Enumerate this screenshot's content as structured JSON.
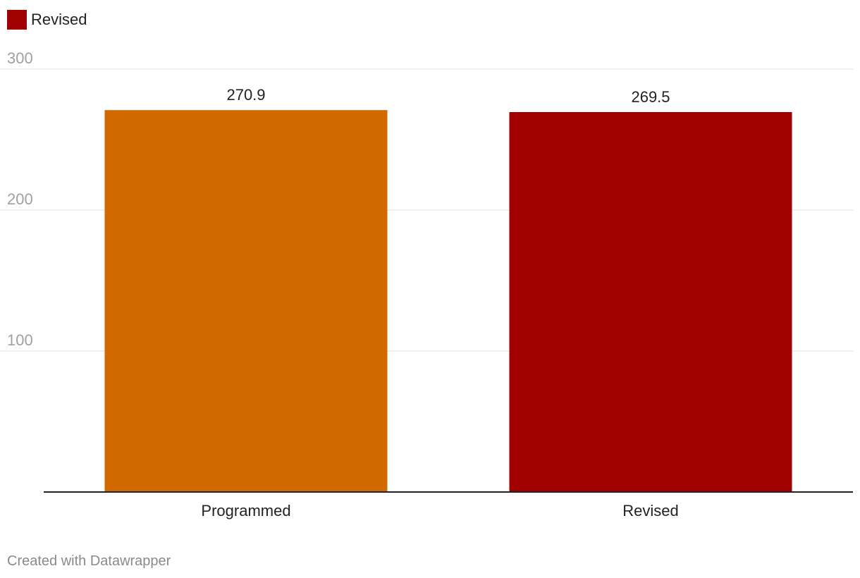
{
  "legend": [
    {
      "label": "Revised",
      "color": "#a00000"
    }
  ],
  "chart_data": {
    "type": "bar",
    "categories": [
      "Programmed",
      "Revised"
    ],
    "values": [
      270.9,
      269.5
    ],
    "value_labels": [
      "270.9",
      "269.5"
    ],
    "colors": [
      "#d06a00",
      "#a00000"
    ],
    "ylim": [
      0,
      300
    ],
    "yticks": [
      100,
      200,
      300
    ],
    "grid": true,
    "legend_position": "top-left",
    "title": "",
    "xlabel": "",
    "ylabel": ""
  },
  "footer": {
    "credit": "Created with Datawrapper"
  }
}
